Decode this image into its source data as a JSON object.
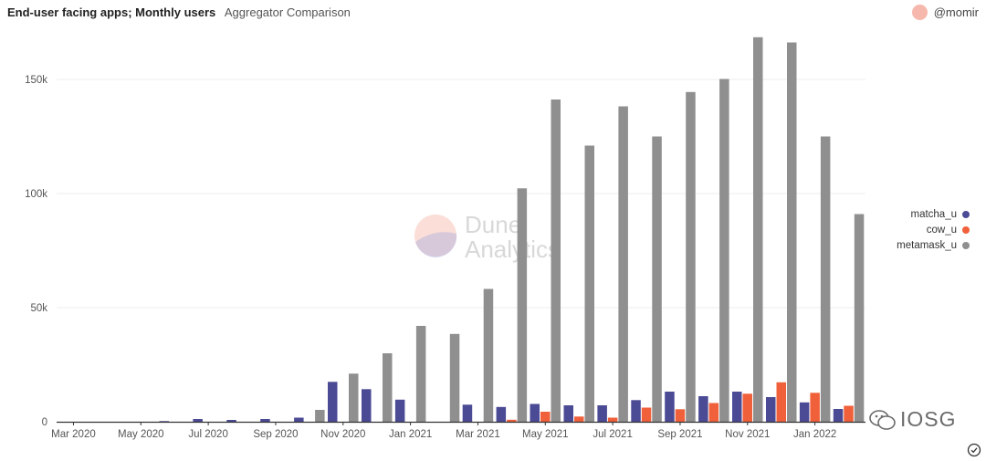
{
  "header": {
    "title": "End-user facing apps; Monthly users",
    "subtitle": "Aggregator Comparison"
  },
  "author": {
    "handle": "@momir",
    "avatar_color": "#f6b8ad"
  },
  "watermark": {
    "line1": "Dune",
    "line2": "Analytics"
  },
  "overlay_brand": {
    "text": "IOSG"
  },
  "chart_data": {
    "type": "bar",
    "categories": [
      "Mar 2020",
      "Apr 2020",
      "May 2020",
      "Jun 2020",
      "Jul 2020",
      "Aug 2020",
      "Sep 2020",
      "Oct 2020",
      "Nov 2020",
      "Dec 2020",
      "Jan 2021",
      "Feb 2021",
      "Mar 2021",
      "Apr 2021",
      "May 2021",
      "Jun 2021",
      "Jul 2021",
      "Aug 2021",
      "Sep 2021",
      "Oct 2021",
      "Nov 2021",
      "Dec 2021",
      "Jan 2022",
      "Feb 2022"
    ],
    "x_tick_labels": [
      "Mar 2020",
      "May 2020",
      "Jul 2020",
      "Sep 2020",
      "Nov 2020",
      "Jan 2021",
      "Mar 2021",
      "May 2021",
      "Jul 2021",
      "Sep 2021",
      "Nov 2021",
      "Jan 2022"
    ],
    "y_ticks": [
      "0",
      "50k",
      "100k",
      "150k"
    ],
    "ylim": [
      0,
      170000
    ],
    "grid": true,
    "legend_position": "right",
    "series": [
      {
        "name": "matcha_u",
        "color": "#4b4a95",
        "values": [
          0,
          0,
          0,
          300,
          1200,
          800,
          1200,
          1800,
          17500,
          14300,
          9700,
          0,
          7500,
          6500,
          7800,
          7200,
          7200,
          9500,
          13200,
          11200,
          13200,
          10800,
          8500,
          5600
        ]
      },
      {
        "name": "cow_u",
        "color": "#f0603a",
        "values": [
          0,
          0,
          0,
          0,
          0,
          0,
          0,
          0,
          0,
          0,
          0,
          0,
          0,
          900,
          4400,
          2300,
          1800,
          6200,
          5500,
          8200,
          12300,
          17300,
          12700,
          7000
        ]
      },
      {
        "name": "metamask_u",
        "color": "#8f8f8f",
        "values": [
          0,
          0,
          0,
          0,
          0,
          0,
          0,
          5200,
          21100,
          30000,
          42000,
          38500,
          58200,
          102300,
          141200,
          121000,
          138200,
          125000,
          144500,
          150200,
          168500,
          166200,
          125000,
          91000
        ]
      }
    ]
  }
}
